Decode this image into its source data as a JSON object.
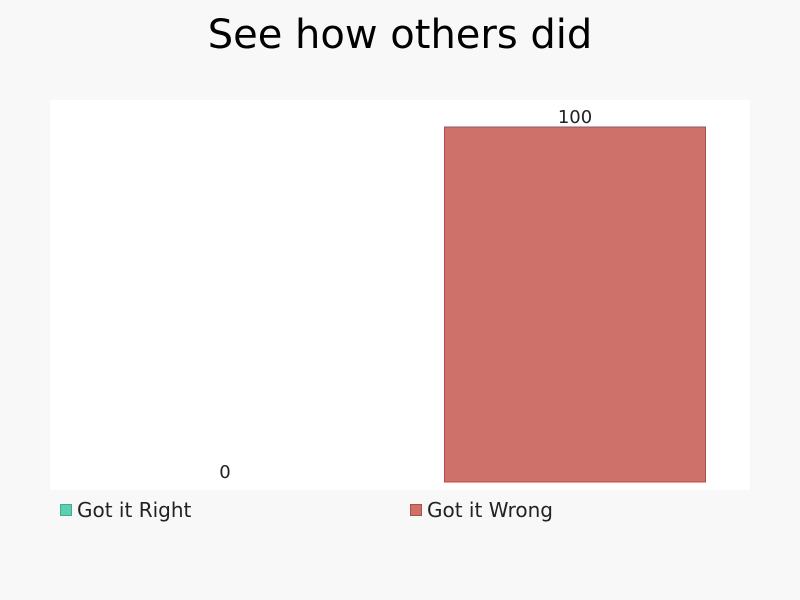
{
  "chart_data": {
    "type": "bar",
    "title": "See how others did",
    "categories": [
      "Got it Right",
      "Got it Wrong"
    ],
    "values": [
      0,
      100
    ],
    "value_labels": [
      "0",
      "100"
    ],
    "colors": [
      "#5ecfb1",
      "#cd716a"
    ],
    "border_colors": [
      "#3fae90",
      "#ad4f48"
    ],
    "ylim": [
      0,
      100
    ],
    "grid": false,
    "legend_position": "bottom"
  }
}
